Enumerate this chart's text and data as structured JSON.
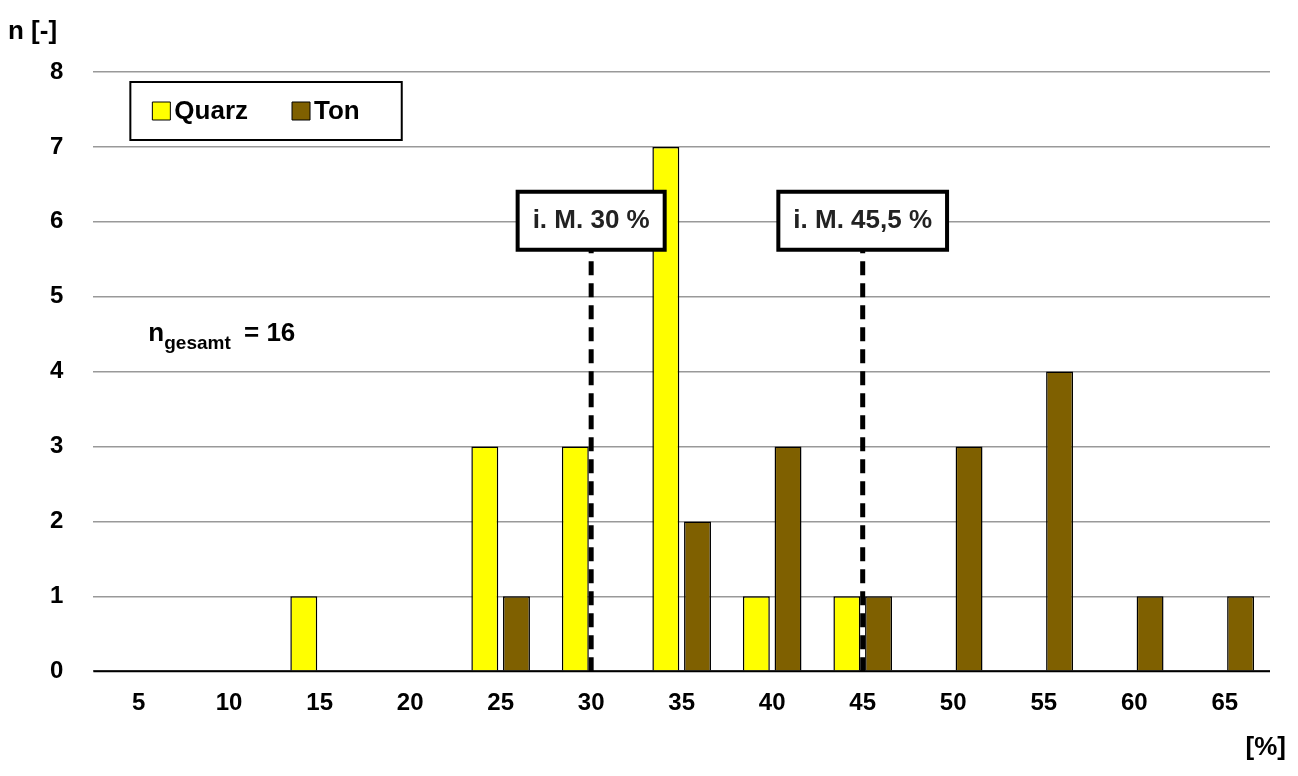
{
  "chart_data": {
    "type": "bar",
    "xlabel": "[%]",
    "ylabel": "n [-]",
    "categories": [
      "5",
      "10",
      "15",
      "20",
      "25",
      "30",
      "35",
      "40",
      "45",
      "50",
      "55",
      "60",
      "65"
    ],
    "series": [
      {
        "name": "Quarz",
        "color": "#ffff00",
        "values": [
          0,
          0,
          1,
          0,
          3,
          3,
          7,
          1,
          1,
          0,
          0,
          0,
          0
        ]
      },
      {
        "name": "Ton",
        "color": "#7f6000",
        "values": [
          0,
          0,
          0,
          0,
          1,
          0,
          2,
          3,
          1,
          3,
          4,
          1,
          1
        ]
      }
    ],
    "ylim": [
      0,
      8
    ],
    "yticks": [
      0,
      1,
      2,
      3,
      4,
      5,
      6,
      7,
      8
    ],
    "grid": "y",
    "legend": "top left",
    "ref_lines": [
      {
        "axis": "x",
        "value": "30",
        "label": "i. M. 30 %",
        "color": "#000000",
        "line_style": "dashed"
      },
      {
        "axis": "x",
        "value": "45",
        "label": "i. M. 45,5 %",
        "color": "#000000",
        "line_style": "dashed"
      }
    ],
    "annotations": [
      "n$_{gesamt}$ = 16"
    ]
  }
}
